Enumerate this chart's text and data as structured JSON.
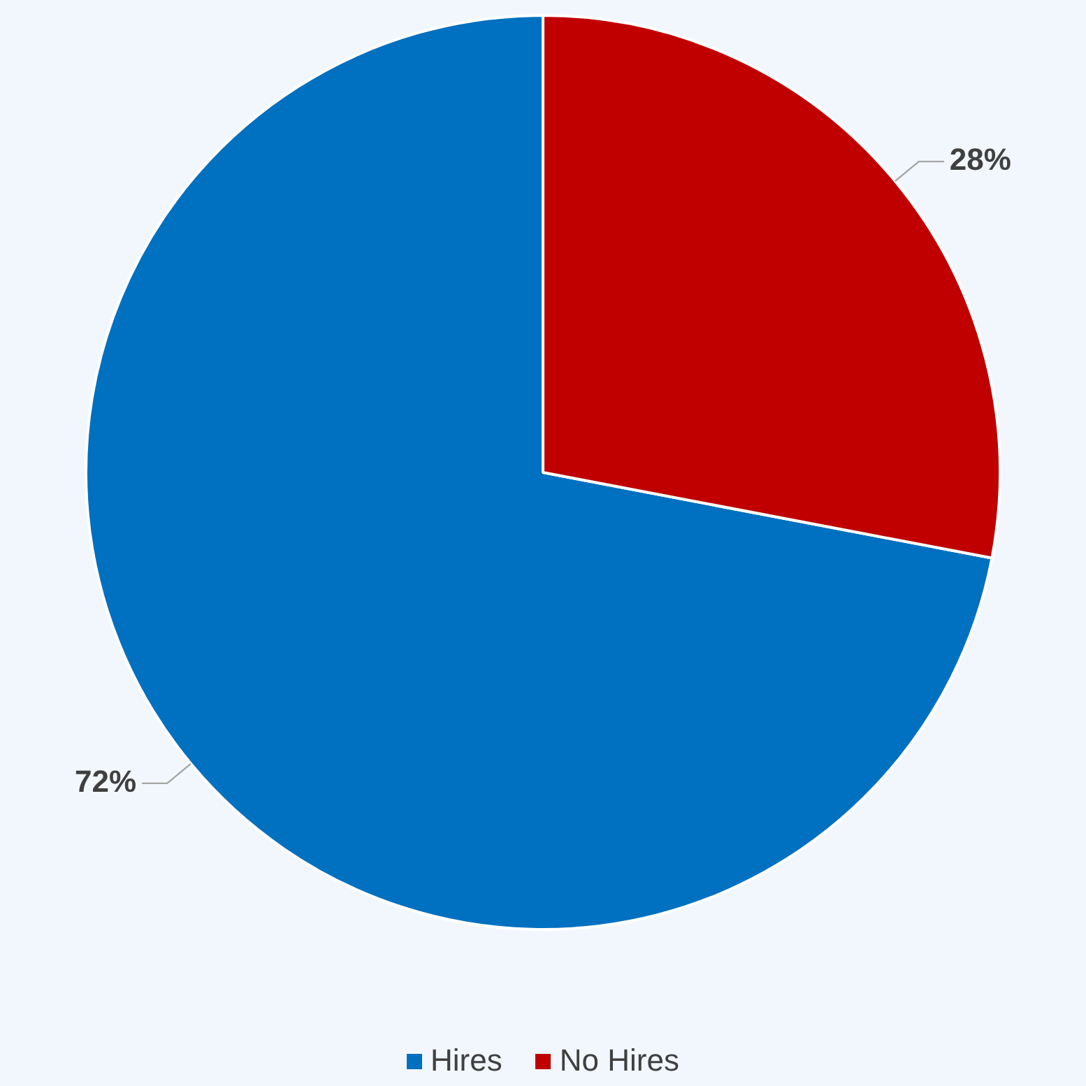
{
  "chart_data": {
    "type": "pie",
    "categories": [
      "Hires",
      "No Hires"
    ],
    "values": [
      72,
      28
    ],
    "colors": [
      "#0070c0",
      "#c00000"
    ],
    "value_labels": [
      "72%",
      "28%"
    ],
    "legend": "bottom"
  }
}
